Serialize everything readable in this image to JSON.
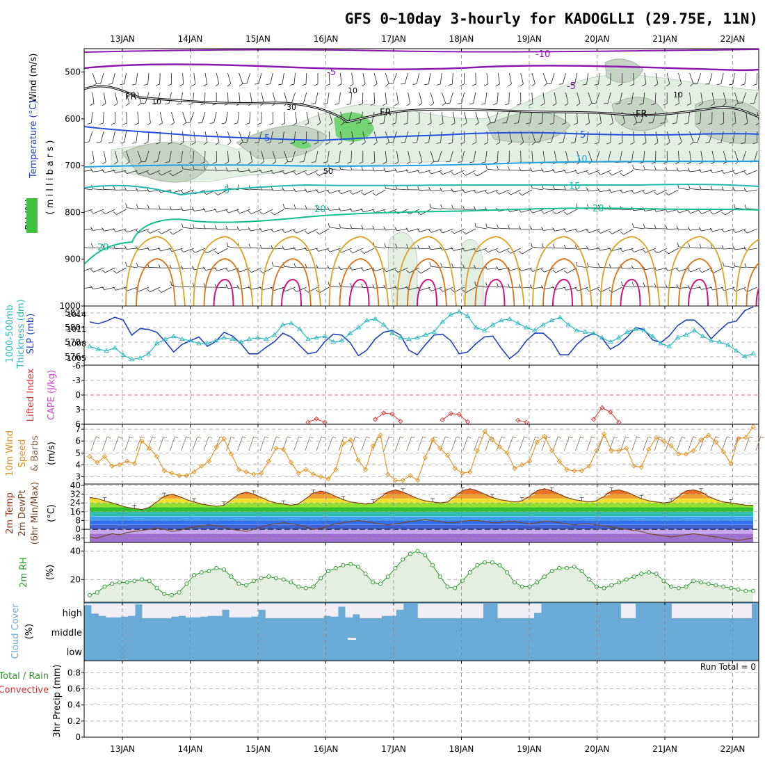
{
  "title": "GFS 0~10day 3-hourly for KADOGLLI (29.75E, 11N)",
  "days": [
    "13JAN",
    "14JAN",
    "15JAN",
    "16JAN",
    "17JAN",
    "18JAN",
    "19JAN",
    "20JAN",
    "21JAN",
    "22JAN"
  ],
  "colors": {
    "sky": "#6aaad6",
    "clear": "#f2eef6",
    "temp_line": "#e0901c",
    "slp": "#2040c0",
    "thickness": "#28b8c0",
    "rh": "#2a9a2a",
    "cape": "#cc44cc",
    "li": "#e03030"
  },
  "chart_data": [
    {
      "type": "heatmap",
      "panel": "upper-air",
      "ylabel": [
        "Wind (m/s)",
        "Temperature (°C)",
        "RH (%)",
        "( m i l l i b a r s )"
      ],
      "y_ticks": [
        "500",
        "600",
        "700",
        "800",
        "900",
        "1000"
      ],
      "ylim": [
        1000,
        450
      ],
      "isotherms": [
        {
          "label": "-10",
          "level": 475
        },
        {
          "label": "-5",
          "level": 495
        },
        {
          "label": "FR",
          "level": 580
        },
        {
          "label": "5",
          "level": 635
        },
        {
          "label": "10",
          "level": 688
        },
        {
          "label": "15",
          "level": 740
        },
        {
          "label": "20",
          "level": 795
        }
      ],
      "rh_labels": [
        "10",
        "30",
        "50"
      ]
    },
    {
      "type": "line",
      "panel": "slp-thickness",
      "ylabel_left": [
        "1000-500mb",
        "Thickness (dm)"
      ],
      "ylabel_right": "SLP (mb)",
      "left_ticks": [
        "582",
        "580",
        "578",
        "576"
      ],
      "right_ticks": [
        "1014",
        "1011",
        "1008",
        "1005"
      ],
      "ylim_slp": [
        1003.5,
        1015.5
      ],
      "series": [
        {
          "name": "SLP (mb)",
          "values": [
            1012.4,
            1012,
            1012.6,
            1013.4,
            1012.8,
            1009.6,
            1011,
            1010.8,
            1010.2,
            1008.2,
            1006,
            1007.6,
            1008.4,
            1009.2,
            1007.2,
            1008.2,
            1010.2,
            1009.4,
            1007.8,
            1005.6,
            1005.6,
            1007,
            1008.2,
            1010,
            1009.2,
            1007.4,
            1005.6,
            1006,
            1008.2,
            1009.8,
            1009.6,
            1008,
            1005.2,
            1006.4,
            1008.8,
            1010.2,
            1010.6,
            1009.6,
            1006.4,
            1005.4,
            1007.6,
            1009.6,
            1009.8,
            1008.4,
            1005.6,
            1006,
            1007.8,
            1009.2,
            1009.4,
            1006.8,
            1004.6,
            1006,
            1008.4,
            1010,
            1010,
            1008.4,
            1005.4,
            1005.4,
            1007.6,
            1009.2,
            1010,
            1009,
            1006.6,
            1007.6,
            1009.2,
            1011.2,
            1010.8,
            1008.6,
            1008,
            1009.4,
            1011.6,
            1012.8,
            1012.8,
            1011.2,
            1008.8,
            1010.6,
            1012.2,
            1012.6,
            1014.8,
            1015.6
          ]
        },
        {
          "name": "Thickness (dm)",
          "values": [
            577.2,
            576.8,
            576.6,
            577,
            576,
            575.4,
            575.6,
            576.2,
            577.6,
            578.2,
            578.6,
            578.2,
            578,
            577.6,
            577.6,
            578,
            578.4,
            578.2,
            577.8,
            578.2,
            578.4,
            578.2,
            578.8,
            580.2,
            580.4,
            579.6,
            578.2,
            578.4,
            578.6,
            577.8,
            578,
            579,
            579.8,
            580.8,
            581,
            580.2,
            579,
            578.4,
            578.2,
            578.4,
            578.8,
            579.2,
            580.6,
            581.6,
            582,
            581.4,
            579.8,
            579.4,
            580.2,
            580.8,
            581,
            580.4,
            579.8,
            579.4,
            580.2,
            580.8,
            581.2,
            580.2,
            579.4,
            579.2,
            579,
            578.4,
            577.8,
            578.4,
            579.2,
            579.6,
            579.4,
            578.6,
            577.6,
            577.2,
            578.4,
            578.8,
            579.4,
            578.6,
            578,
            577.8,
            577.4,
            576.6,
            575.8,
            576.2
          ]
        }
      ]
    },
    {
      "type": "line",
      "panel": "cape-li",
      "ylabel": [
        "Lifted Index",
        "CAPE (J/kg)"
      ],
      "y_ticks": [
        "6",
        "3",
        "0",
        "-3",
        "-6"
      ],
      "ylim": [
        -6,
        6
      ],
      "series": [
        {
          "name": "Lifted Index",
          "values": [
            null,
            null,
            null,
            null,
            null,
            null,
            null,
            null,
            null,
            null,
            null,
            null,
            null,
            null,
            null,
            null,
            null,
            null,
            null,
            null,
            null,
            null,
            null,
            null,
            null,
            null,
            5.6,
            4.9,
            5.6,
            null,
            null,
            null,
            null,
            null,
            5,
            3.7,
            3.9,
            5.4,
            null,
            null,
            null,
            null,
            5.1,
            3.8,
            4,
            5.5,
            null,
            null,
            null,
            null,
            null,
            5.2,
            5.6,
            null,
            null,
            null,
            null,
            null,
            null,
            null,
            5,
            2.6,
            3.5,
            5.6,
            null,
            null,
            null,
            null,
            null,
            null,
            null,
            null,
            null,
            null,
            null,
            null,
            null,
            null,
            null,
            null
          ]
        }
      ]
    },
    {
      "type": "line",
      "panel": "wind",
      "ylabel": [
        "10m Wind",
        "Speed",
        "& Barbs",
        "(m/s)"
      ],
      "y_ticks": [
        "7",
        "6",
        "5",
        "4",
        "3"
      ],
      "ylim": [
        2.5,
        7.3
      ],
      "series": [
        {
          "name": "10m Wind Speed",
          "values": [
            4.7,
            4.2,
            4.7,
            3.9,
            4,
            4.3,
            4.1,
            6,
            5.4,
            4.7,
            3.5,
            3.3,
            3.1,
            3.1,
            3.4,
            3.9,
            4.3,
            5.5,
            6.2,
            4.9,
            3.6,
            3.4,
            3.2,
            3.3,
            4.3,
            5.4,
            5.3,
            4.2,
            3.3,
            3.6,
            3.2,
            3,
            2.8,
            3.6,
            5.8,
            6.1,
            4.4,
            3.6,
            5.6,
            6.5,
            3.2,
            2.7,
            2.7,
            3.1,
            2.7,
            4.6,
            6.1,
            5.4,
            4.8,
            3.7,
            3.3,
            3.4,
            5.2,
            6.8,
            6.1,
            5.5,
            5,
            3.7,
            4,
            4.3,
            5.9,
            6.4,
            5.2,
            4.3,
            3.6,
            3.5,
            3.5,
            3.9,
            5.2,
            6.6,
            5.2,
            5.2,
            5.4,
            3.9,
            3.8,
            5.3,
            6.3,
            6,
            5.6,
            4.9,
            4.9,
            5.2,
            6.1,
            6.5,
            5.9,
            5.1,
            4.1,
            6.2,
            6.3,
            7.2
          ]
        }
      ]
    },
    {
      "type": "area",
      "panel": "temperature",
      "ylabel": [
        "2m Temp",
        "2m DewPt",
        "(6hr Min/Max)",
        "(°C)"
      ],
      "y_ticks": [
        "40",
        "32",
        "24",
        "16",
        "8",
        "0",
        "-8"
      ],
      "ylim": [
        -12,
        40
      ],
      "series": [
        {
          "name": "2m Temp",
          "values": [
            29,
            28,
            26,
            24,
            22,
            20,
            19,
            18,
            20,
            25,
            30,
            32,
            30,
            27,
            25,
            23,
            22,
            21,
            22,
            27,
            32,
            34,
            32,
            29,
            26,
            24,
            23,
            22,
            23,
            28,
            33,
            35,
            33,
            30,
            27,
            25,
            24,
            23,
            24,
            29,
            34,
            36,
            34,
            31,
            28,
            26,
            25,
            24,
            25,
            30,
            35,
            37,
            35,
            32,
            29,
            27,
            26,
            25,
            26,
            30,
            35,
            37,
            35,
            32,
            29,
            27,
            26,
            25,
            26,
            30,
            35,
            36,
            34,
            31,
            28,
            26,
            25,
            24,
            25,
            30,
            35,
            36,
            34,
            30,
            27,
            25,
            24,
            23,
            22,
            22
          ]
        },
        {
          "name": "2m DewPt",
          "values": [
            -7,
            -8,
            -6,
            -4,
            -5,
            -3,
            -2,
            -1,
            0,
            1,
            0,
            -2,
            -1,
            1,
            2,
            3,
            4,
            3,
            2,
            0,
            -1,
            -2,
            0,
            2,
            4,
            5,
            6,
            5,
            4,
            2,
            0,
            1,
            3,
            5,
            6,
            7,
            8,
            7,
            6,
            5,
            4,
            5,
            6,
            7,
            8,
            9,
            8,
            7,
            6,
            6,
            7,
            8,
            8,
            7,
            6,
            6,
            7,
            7,
            6,
            5,
            6,
            7,
            7,
            6,
            5,
            4,
            5,
            5,
            4,
            3,
            2,
            1,
            0,
            -1,
            -2,
            -4,
            -5,
            -6,
            -7,
            -6,
            -5,
            -4,
            -5,
            -6,
            -7,
            -8,
            -9,
            -10,
            -9,
            -8
          ]
        }
      ]
    },
    {
      "type": "area",
      "panel": "rh",
      "ylabel": [
        "2m RH",
        "(%)"
      ],
      "y_ticks": [
        "40",
        "20"
      ],
      "ylim": [
        5,
        45
      ],
      "series": [
        {
          "name": "2m RH",
          "values": [
            9,
            11,
            15,
            17,
            18,
            18,
            19,
            20,
            19,
            14,
            10,
            9,
            11,
            17,
            23,
            25,
            26,
            28,
            27,
            22,
            17,
            16,
            19,
            21,
            22,
            21,
            20,
            18,
            15,
            14,
            15,
            21,
            26,
            28,
            30,
            31,
            29,
            24,
            18,
            17,
            22,
            28,
            34,
            38,
            40,
            37,
            30,
            22,
            15,
            14,
            19,
            25,
            30,
            32,
            32,
            30,
            25,
            18,
            15,
            15,
            18,
            22,
            26,
            28,
            28,
            29,
            26,
            20,
            15,
            14,
            16,
            18,
            20,
            22,
            24,
            25,
            24,
            19,
            15,
            14,
            15,
            19,
            18,
            17,
            16,
            15,
            14,
            13,
            12,
            12
          ]
        }
      ]
    },
    {
      "type": "bar",
      "panel": "cloud",
      "ylabel": [
        "Cloud Cover",
        "(%)"
      ],
      "y_ticks": [
        "high",
        "middle",
        "low"
      ],
      "series": [
        {
          "name": "high",
          "values": [
            90,
            35,
            20,
            10,
            10,
            15,
            20,
            95,
            5,
            5,
            5,
            5,
            15,
            20,
            10,
            10,
            15,
            20,
            20,
            60,
            10,
            10,
            10,
            15,
            60,
            5,
            5,
            5,
            5,
            5,
            5,
            5,
            5,
            20,
            15,
            80,
            10,
            30,
            5,
            5,
            5,
            20,
            20,
            60,
            100,
            100,
            5,
            5,
            5,
            5,
            5,
            5,
            5,
            5,
            5,
            100,
            100,
            5,
            5,
            5,
            5,
            5,
            40,
            100,
            100,
            100,
            100,
            100,
            100,
            100,
            100,
            100,
            100,
            100,
            5,
            5,
            100,
            100,
            100,
            100,
            100,
            5,
            5,
            5,
            5,
            5,
            5,
            5,
            5,
            5,
            5,
            5,
            100
          ]
        }
      ]
    },
    {
      "type": "bar",
      "panel": "precip",
      "ylabel": [
        "Total / Rain",
        "Convective",
        "3hr Precip (mm)"
      ],
      "y_ticks": [
        "0.8",
        "0.6",
        "0.4",
        "0.2",
        "0"
      ],
      "ylim": [
        0,
        0.95
      ],
      "run_total": "Run Total = 0",
      "series": []
    }
  ]
}
